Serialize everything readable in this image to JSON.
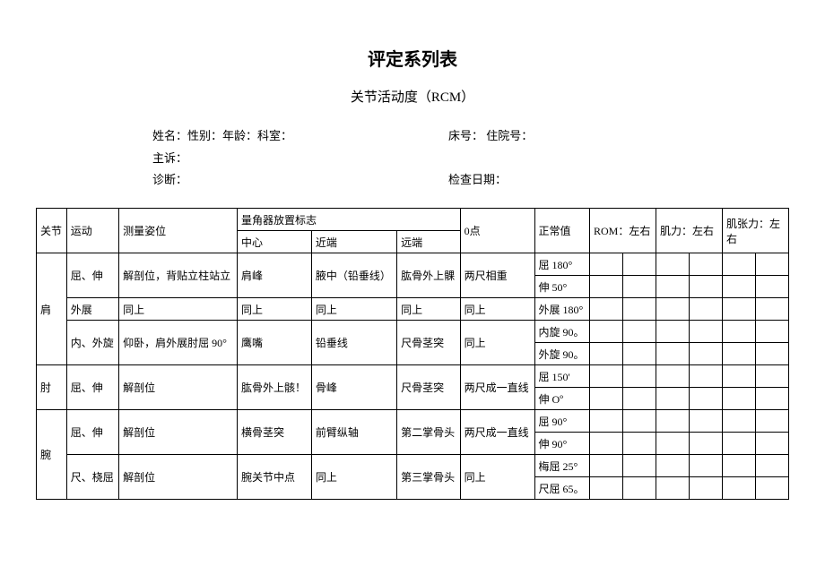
{
  "title": "评定系列表",
  "subtitle": "关节活动度（RCM）",
  "info": {
    "line1_left": "姓名：性别：年龄：科室：",
    "line1_right": "床号：  住院号：",
    "line2": "主诉：",
    "line3_left": "诊断：",
    "line3_right": "检查日期："
  },
  "headers": {
    "joint": "关节",
    "movement": "运动",
    "posture": "测量姿位",
    "goniometer": "量角器放置标志",
    "center": "中心",
    "proximal": "近端",
    "distal": "远端",
    "zero": "0点",
    "normal": "正常值",
    "rom": "ROM：左右",
    "muscle": "肌力：左右",
    "tension": "肌张力：左右"
  },
  "rows": {
    "shoulder": {
      "name": "肩",
      "r1": {
        "mv": "屈、伸",
        "pos": "解剖位，背贴立柱站立",
        "c": "肩峰",
        "p": "腋中（铅垂线）",
        "d": "肱骨外上髁",
        "z": "两尺相重",
        "n1": "屈 180°",
        "n2": "伸 50°"
      },
      "r2": {
        "mv": "外展",
        "pos": "同上",
        "c": "同上",
        "p": "同上",
        "d": "同上",
        "z": "同上",
        "n": "外展 180°"
      },
      "r3": {
        "mv": "内、外旋",
        "pos": "仰卧，肩外展肘屈 90°",
        "c": "鹰嘴",
        "p": "铅垂线",
        "d": "尺骨茎突",
        "z": "同上",
        "n1": "内旋 90。",
        "n2": "外旋 90。"
      }
    },
    "elbow": {
      "name": "肘",
      "r1": {
        "mv": "屈、伸",
        "pos": "解剖位",
        "c": "肱骨外上骸！",
        "p": "骨峰",
        "d": "尺骨茎突",
        "z": "两尺成一直线",
        "n1": "屈 150'",
        "n2": "伸 Oº"
      }
    },
    "wrist": {
      "name": "腕",
      "r1": {
        "mv": "屈、伸",
        "pos": "解剖位",
        "c": "横骨茎突",
        "p": "前臂纵轴",
        "d": "第二掌骨头",
        "z": "两尺成一直线",
        "n1": "屈 90°",
        "n2": "伸 90°"
      },
      "r2": {
        "mv": "尺、桡屈",
        "pos": "解剖位",
        "c": "腕关节中点",
        "p": "同上",
        "d": "第三掌骨头",
        "z": "同上",
        "n1": "梅屈 25°",
        "n2": "尺屈 65。"
      }
    }
  }
}
